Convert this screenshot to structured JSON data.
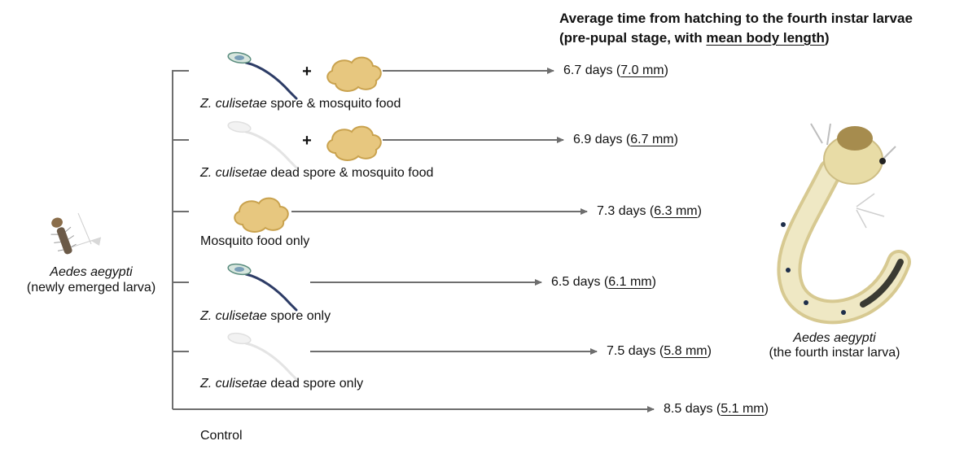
{
  "title": {
    "line1": "Average time from hatching to the fourth instar larvae",
    "line2_prefix": "(pre-pupal stage, with ",
    "line2_underlined": "mean body length",
    "line2_suffix": ")"
  },
  "start_larva": {
    "species": "Aedes aegypti",
    "stage": "(newly emerged larva)"
  },
  "end_larva": {
    "species": "Aedes aegypti",
    "stage": "(the fourth instar larva)"
  },
  "plus_sign": "+",
  "treatments": [
    {
      "label_italic": "Z. culisetae",
      "label_rest": " spore & mosquito food",
      "days": "6.7 days",
      "length": "7.0 mm",
      "inputs": [
        "spore",
        "food"
      ]
    },
    {
      "label_italic": "Z. culisetae",
      "label_rest": " dead spore & mosquito food",
      "days": "6.9 days",
      "length": "6.7 mm",
      "inputs": [
        "dead-spore",
        "food"
      ]
    },
    {
      "label_italic": "",
      "label_rest": "Mosquito food only",
      "days": "7.3 days",
      "length": "6.3 mm",
      "inputs": [
        "food"
      ]
    },
    {
      "label_italic": "Z. culisetae",
      "label_rest": " spore only",
      "days": "6.5 days",
      "length": "6.1 mm",
      "inputs": [
        "spore"
      ]
    },
    {
      "label_italic": "Z. culisetae",
      "label_rest": " dead spore only",
      "days": "7.5 days",
      "length": "5.8 mm",
      "inputs": [
        "dead-spore"
      ]
    },
    {
      "label_italic": "",
      "label_rest": "Control",
      "days": "8.5 days",
      "length": "5.1 mm",
      "inputs": []
    }
  ],
  "colors": {
    "line": "#6e6e6e",
    "food_fill": "#e7c77f",
    "food_stroke": "#c9a24e",
    "spore_body": "#2d3c66",
    "dead_spore": "#e4e4e4",
    "larva_body": "#e9dfae"
  }
}
